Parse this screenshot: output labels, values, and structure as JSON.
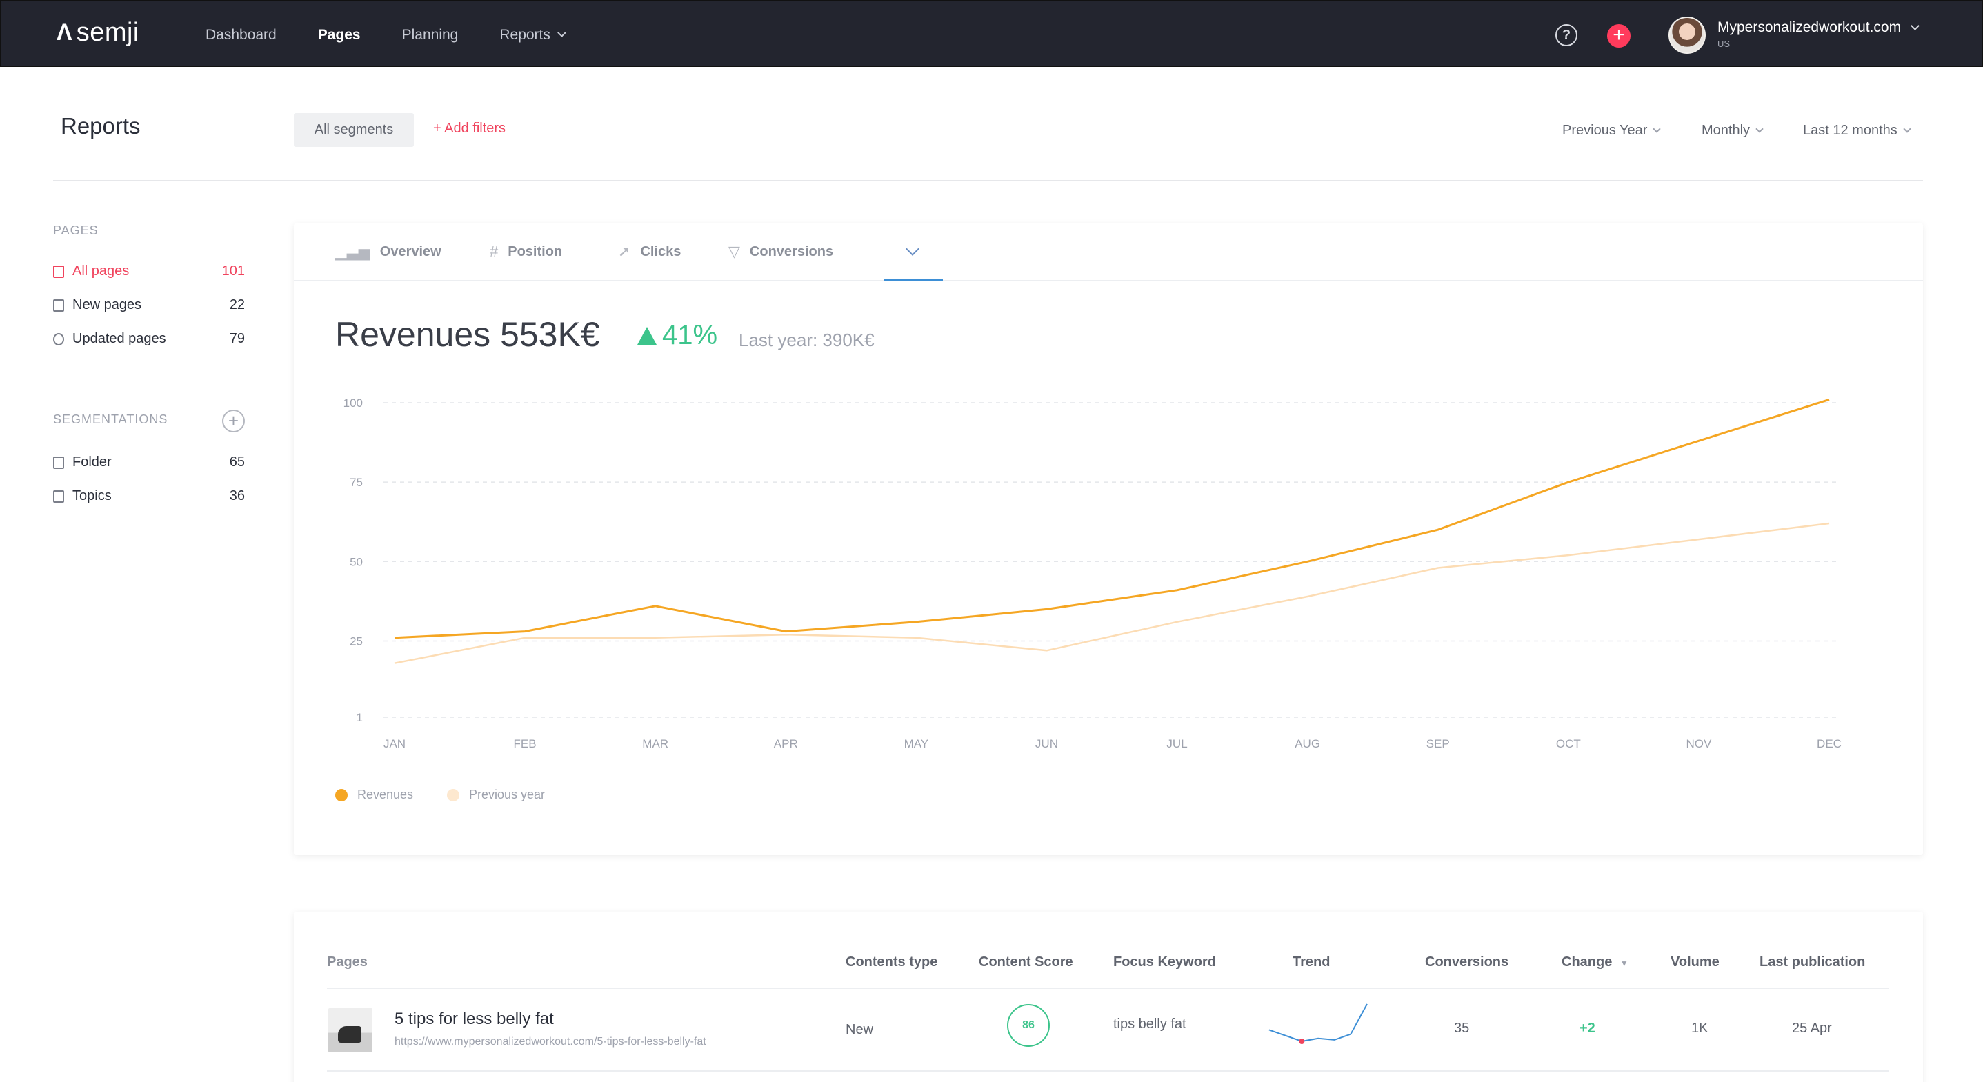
{
  "brand": {
    "logo_text": "semji"
  },
  "nav": {
    "items": [
      {
        "label": "Dashboard"
      },
      {
        "label": "Pages"
      },
      {
        "label": "Planning"
      },
      {
        "label": "Reports"
      }
    ]
  },
  "account": {
    "name": "Mypersonalizedworkout.com",
    "sub": "US",
    "help_glyph": "?",
    "add_glyph": "+"
  },
  "header": {
    "title": "Reports",
    "segments_label": "All segments",
    "add_filters_label": "+ Add filters",
    "period_compare": "Previous Year",
    "period_granularity": "Monthly",
    "period_range": "Last 12 months"
  },
  "sidebar": {
    "pages_heading": "PAGES",
    "pages": [
      {
        "label": "All pages",
        "count": "101"
      },
      {
        "label": "New pages",
        "count": "22"
      },
      {
        "label": "Updated pages",
        "count": "79"
      }
    ],
    "segmentations_heading": "SEGMENTATIONS",
    "segmentations_add": "+",
    "segmentations": [
      {
        "label": "Folder",
        "count": "65"
      },
      {
        "label": "Topics",
        "count": "36"
      }
    ]
  },
  "tabs": [
    {
      "label": "Overview",
      "icon": "bar-chart-icon"
    },
    {
      "label": "Position",
      "icon": "hash-icon"
    },
    {
      "label": "Clicks",
      "icon": "cursor-icon"
    },
    {
      "label": "Conversions",
      "icon": "funnel-icon"
    }
  ],
  "summary": {
    "title": "Revenues 553K€",
    "change": "41%",
    "last_year": "Last year: 390K€"
  },
  "chart_data": {
    "type": "line",
    "categories": [
      "JAN",
      "FEB",
      "MAR",
      "APR",
      "MAY",
      "JUN",
      "JUL",
      "AUG",
      "SEP",
      "OCT",
      "NOV",
      "DEC"
    ],
    "yticks": [
      "100",
      "75",
      "50",
      "25",
      "1"
    ],
    "ylim": [
      1,
      100
    ],
    "grid": true,
    "legend_position": "bottom-left",
    "series": [
      {
        "name": "Revenues",
        "color": "#f5a623",
        "values": [
          26,
          28,
          36,
          28,
          31,
          35,
          41,
          50,
          60,
          75,
          88,
          101
        ]
      },
      {
        "name": "Previous year",
        "color": "#fcdcb4",
        "values": [
          18,
          26,
          26,
          27,
          26,
          22,
          31,
          39,
          48,
          52,
          57,
          62
        ]
      }
    ]
  },
  "table": {
    "columns": [
      "Pages",
      "Contents type",
      "Content Score",
      "Focus Keyword",
      "Trend",
      "Conversions",
      "Change",
      "Volume",
      "Last publication"
    ],
    "rows": [
      {
        "title": "5 tips for less belly fat",
        "url": "https://www.mypersonalizedworkout.com/5-tips-for-less-belly-fat",
        "content_type": "New",
        "content_score": "86",
        "focus_keyword": "tips belly fat",
        "trend": [
          52,
          44,
          36,
          40,
          38,
          46,
          88
        ],
        "conversions": "35",
        "change": "+2",
        "volume": "1K",
        "last_publication": "25 Apr"
      }
    ]
  },
  "colors": {
    "accent": "#f0435d",
    "positive": "#3cc48b",
    "nav_bg": "#23252f",
    "tab_active": "#3d8fd6"
  }
}
